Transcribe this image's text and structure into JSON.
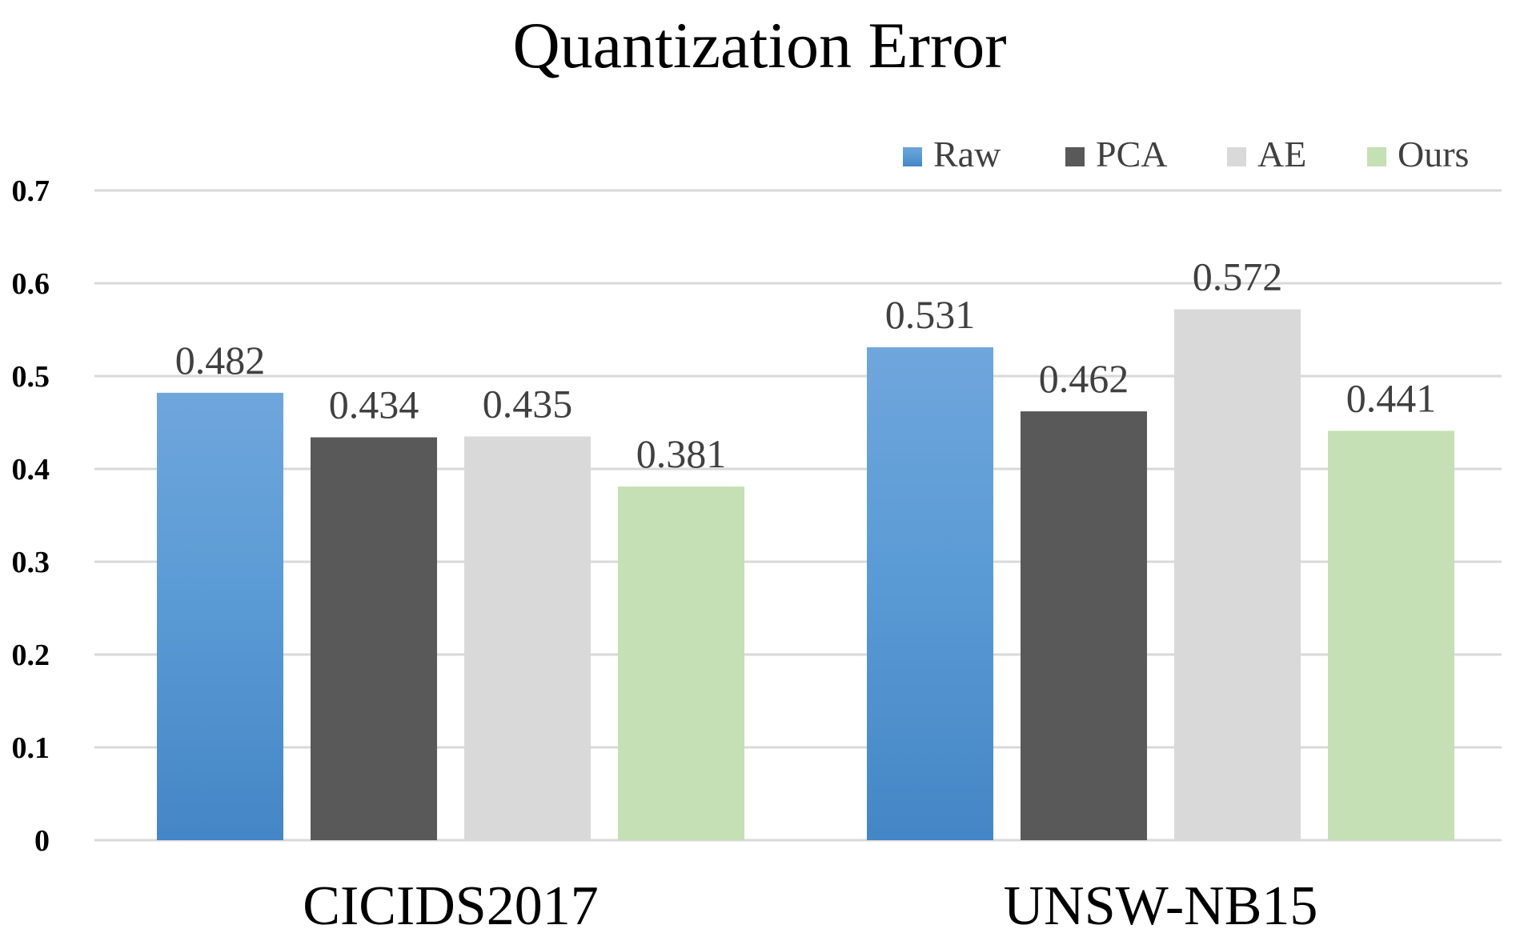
{
  "chart_data": {
    "type": "bar",
    "title": "Quantization Error",
    "xlabel": "",
    "ylabel": "",
    "categories": [
      "CICIDS2017",
      "UNSW-NB15"
    ],
    "series": [
      {
        "name": "Raw",
        "color": "#5B9BD5",
        "values": [
          0.482,
          0.531
        ],
        "labels": [
          "0.482",
          "0.531"
        ]
      },
      {
        "name": "PCA",
        "color": "#595959",
        "values": [
          0.434,
          0.462
        ],
        "labels": [
          "0.434",
          "0.462"
        ]
      },
      {
        "name": "AE",
        "color": "#D9D9D9",
        "values": [
          0.435,
          0.572
        ],
        "labels": [
          "0.435",
          "0.572"
        ]
      },
      {
        "name": "Ours",
        "color": "#C5E0B4",
        "values": [
          0.381,
          0.441
        ],
        "labels": [
          "0.381",
          "0.441"
        ]
      }
    ],
    "ylim": [
      0,
      0.7
    ],
    "yticks": [
      0,
      0.1,
      0.2,
      0.3,
      0.4,
      0.5,
      0.6,
      0.7
    ],
    "ytick_labels": [
      "0",
      "0.1",
      "0.2",
      "0.3",
      "0.4",
      "0.5",
      "0.6",
      "0.7"
    ],
    "grid": true,
    "legend_position": "top-right",
    "gridline_color": "#D9D9D9"
  }
}
